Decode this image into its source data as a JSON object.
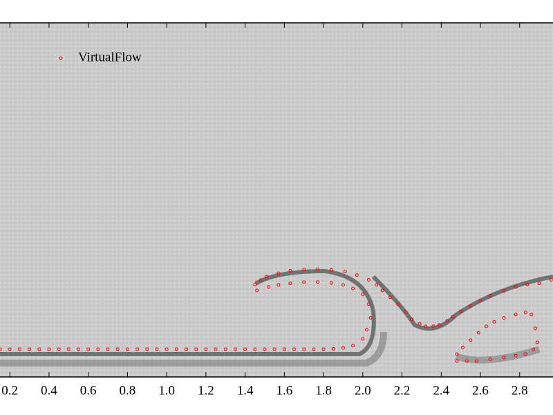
{
  "chart_data": {
    "type": "scatter",
    "x": [
      0.15,
      0.2,
      0.25,
      0.3,
      0.35,
      0.4,
      0.45,
      0.5,
      0.55,
      0.6,
      0.65,
      0.7,
      0.75,
      0.8,
      0.85,
      0.9,
      0.95,
      1.0,
      1.05,
      1.1,
      1.15,
      1.2,
      1.25,
      1.3,
      1.35,
      1.4,
      1.45,
      1.5,
      1.55,
      1.6,
      1.65,
      1.7,
      1.75,
      1.8,
      1.85,
      1.9,
      1.95,
      2.0,
      2.02,
      2.04,
      2.03,
      2.0,
      1.95,
      1.9,
      1.84,
      1.77,
      1.7,
      1.63,
      1.57,
      1.52,
      1.46,
      1.45,
      1.48,
      1.51,
      1.57,
      1.63,
      1.7,
      1.77,
      1.84,
      1.91,
      1.97,
      2.03,
      2.07,
      2.1,
      2.14,
      2.18,
      2.22,
      2.25,
      2.29,
      2.32,
      2.36,
      2.39,
      2.43,
      2.46,
      2.5,
      2.55,
      2.6,
      2.65,
      2.72,
      2.78,
      2.84,
      2.9,
      2.96,
      2.88,
      2.86,
      2.83,
      2.78,
      2.72,
      2.67,
      2.63,
      2.59,
      2.55,
      2.51,
      2.48,
      2.48,
      2.53,
      2.58,
      2.65,
      2.72,
      2.78,
      2.83,
      2.87,
      2.89
    ],
    "series": [
      {
        "name": "VirtualFlow",
        "color": "#ff0000",
        "values": [
          0.141,
          0.141,
          0.141,
          0.141,
          0.141,
          0.141,
          0.141,
          0.141,
          0.141,
          0.141,
          0.141,
          0.141,
          0.141,
          0.141,
          0.141,
          0.141,
          0.141,
          0.141,
          0.141,
          0.141,
          0.141,
          0.141,
          0.141,
          0.141,
          0.141,
          0.141,
          0.141,
          0.141,
          0.141,
          0.141,
          0.141,
          0.141,
          0.141,
          0.141,
          0.143,
          0.148,
          0.16,
          0.194,
          0.24,
          0.3,
          0.37,
          0.42,
          0.45,
          0.468,
          0.478,
          0.483,
          0.482,
          0.476,
          0.468,
          0.458,
          0.44,
          0.47,
          0.492,
          0.51,
          0.527,
          0.54,
          0.546,
          0.547,
          0.544,
          0.536,
          0.518,
          0.494,
          0.468,
          0.44,
          0.405,
          0.37,
          0.33,
          0.293,
          0.27,
          0.257,
          0.258,
          0.264,
          0.285,
          0.307,
          0.334,
          0.36,
          0.388,
          0.413,
          0.438,
          0.458,
          0.47,
          0.476,
          0.494,
          0.247,
          0.317,
          0.328,
          0.318,
          0.3,
          0.28,
          0.257,
          0.225,
          0.187,
          0.15,
          0.116,
          0.081,
          0.081,
          0.081,
          0.09,
          0.099,
          0.108,
          0.116,
          0.14,
          0.176
        ]
      }
    ],
    "xlim": [
      0.15,
      2.97
    ],
    "ylim": [
      0,
      1.8
    ],
    "xticks": [
      {
        "value": 0.2,
        "label": "0.2"
      },
      {
        "value": 0.4,
        "label": "0.4"
      },
      {
        "value": 0.6,
        "label": "0.6"
      },
      {
        "value": 0.8,
        "label": "0.8"
      },
      {
        "value": 1.0,
        "label": "1.0"
      },
      {
        "value": 1.2,
        "label": "1.2"
      },
      {
        "value": 1.4,
        "label": "1.4"
      },
      {
        "value": 1.6,
        "label": "1.6"
      },
      {
        "value": 1.8,
        "label": "1.8"
      },
      {
        "value": 2.0,
        "label": "2.0"
      },
      {
        "value": 2.2,
        "label": "2.2"
      },
      {
        "value": 2.4,
        "label": "2.4"
      },
      {
        "value": 2.6,
        "label": "2.6"
      },
      {
        "value": 2.8,
        "label": "2.8"
      }
    ],
    "legend": "upper left"
  }
}
